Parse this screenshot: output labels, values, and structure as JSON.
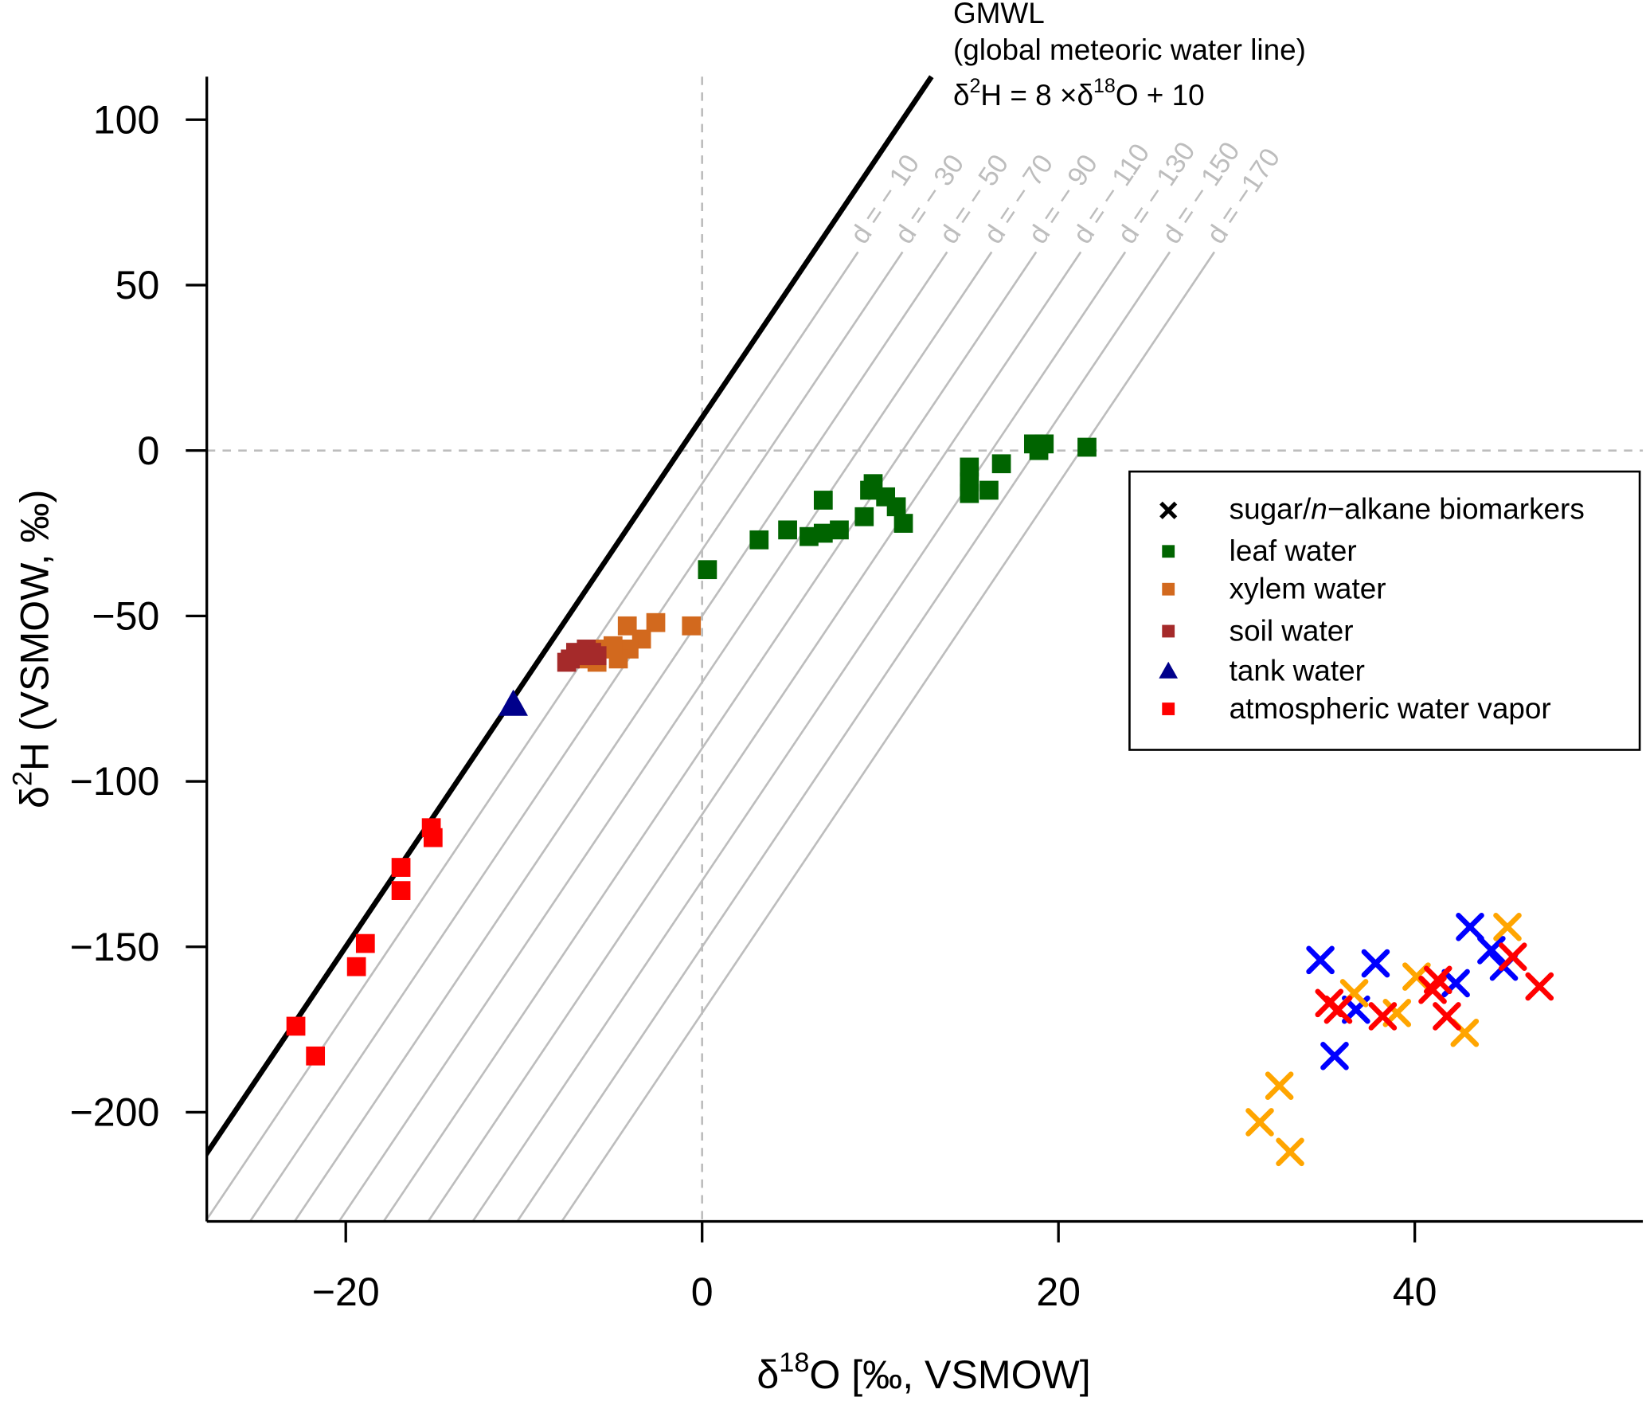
{
  "chart_data": {
    "type": "scatter",
    "xlabel": {
      "pre": "δ",
      "sup": "18",
      "post": "O [‰, VSMOW]"
    },
    "ylabel": {
      "pre": "δ",
      "sup": "2",
      "post": "H (VSMOW, ‰)"
    },
    "xlim": [
      -27.8,
      52.8
    ],
    "ylim": [
      -233,
      113
    ],
    "xticks": [
      -20,
      0,
      20,
      40
    ],
    "yticks": [
      100,
      50,
      0,
      -50,
      -100,
      -150,
      -200
    ],
    "xtick_labels": [
      "−20",
      "0",
      "20",
      "40"
    ],
    "ytick_labels": [
      "100",
      "50",
      "0",
      "−50",
      "−100",
      "−150",
      "−200"
    ],
    "gmwl": {
      "slope": 8,
      "intercept": 10,
      "line1": "GMWL",
      "line2": "(global meteoric water line)",
      "eq_a": "δ",
      "eq_b": "2",
      "eq_c": "H = 8 ×δ",
      "eq_d": "18",
      "eq_e": "O + 10"
    },
    "d_lines": [
      -10,
      -30,
      -50,
      -70,
      -90,
      -110,
      -130,
      -150,
      -170
    ],
    "d_labels": [
      "d = − 10",
      "d = − 30",
      "d = − 50",
      "d = − 70",
      "d = − 90",
      "d = − 110",
      "d = − 130",
      "d = − 150",
      "d = −170"
    ],
    "reference_lines": {
      "x": 0,
      "y": 0
    },
    "legend": {
      "placement": "right",
      "entries": [
        {
          "label_a": "sugar/",
          "label_i": "n",
          "label_b": "−alkane biomarkers",
          "symbol": "cross",
          "color": "#000000"
        },
        {
          "label": "leaf water",
          "symbol": "square",
          "color": "#006400"
        },
        {
          "label": "xylem water",
          "symbol": "square",
          "color": "#D2691E"
        },
        {
          "label": "soil water",
          "symbol": "square",
          "color": "#A52A2A"
        },
        {
          "label": "tank water",
          "symbol": "triangle",
          "color": "#00008B"
        },
        {
          "label": "atmospheric water vapor",
          "symbol": "square",
          "color": "#FF0000"
        }
      ]
    },
    "series": [
      {
        "name": "leaf water",
        "symbol": "square",
        "color": "#006400",
        "points": [
          [
            0.3,
            -36
          ],
          [
            3.2,
            -27
          ],
          [
            4.8,
            -24
          ],
          [
            6.0,
            -26
          ],
          [
            6.8,
            -25
          ],
          [
            7.7,
            -24
          ],
          [
            6.8,
            -15
          ],
          [
            9.1,
            -20
          ],
          [
            9.6,
            -10
          ],
          [
            9.4,
            -12
          ],
          [
            10.3,
            -14
          ],
          [
            10.9,
            -17
          ],
          [
            11.3,
            -22
          ],
          [
            15.0,
            -5
          ],
          [
            15.0,
            -9.5
          ],
          [
            15.0,
            -13
          ],
          [
            16.1,
            -12
          ],
          [
            16.8,
            -4
          ],
          [
            18.6,
            2
          ],
          [
            18.9,
            0
          ],
          [
            19.2,
            2
          ],
          [
            21.6,
            1
          ]
        ]
      },
      {
        "name": "xylem water",
        "symbol": "square",
        "color": "#D2691E",
        "points": [
          [
            -0.6,
            -53
          ],
          [
            -2.6,
            -52
          ],
          [
            -4.2,
            -53
          ],
          [
            -3.4,
            -57
          ],
          [
            -4.1,
            -60
          ],
          [
            -4.7,
            -63
          ],
          [
            -5.6,
            -60
          ],
          [
            -5.9,
            -64
          ],
          [
            -6.5,
            -63
          ],
          [
            -5.0,
            -59
          ]
        ]
      },
      {
        "name": "soil water",
        "symbol": "square",
        "color": "#A52A2A",
        "points": [
          [
            -7.4,
            -63
          ],
          [
            -6.8,
            -62
          ],
          [
            -6.2,
            -61
          ],
          [
            -6.5,
            -60
          ],
          [
            -7.1,
            -61
          ],
          [
            -5.9,
            -62
          ],
          [
            -7.6,
            -64
          ]
        ]
      },
      {
        "name": "tank water",
        "symbol": "triangle",
        "color": "#00008B",
        "points": [
          [
            -10.6,
            -77
          ]
        ]
      },
      {
        "name": "atmospheric water vapor",
        "symbol": "square",
        "color": "#FF0000",
        "points": [
          [
            -15.2,
            -114
          ],
          [
            -15.1,
            -117
          ],
          [
            -16.9,
            -126
          ],
          [
            -16.9,
            -133
          ],
          [
            -18.9,
            -149
          ],
          [
            -19.4,
            -156
          ],
          [
            -22.8,
            -174
          ],
          [
            -21.7,
            -183
          ]
        ]
      },
      {
        "name": "biomarkers (blue)",
        "symbol": "cross",
        "color": "#0000FF",
        "points": [
          [
            34.7,
            -154
          ],
          [
            37.8,
            -155
          ],
          [
            43.1,
            -144
          ],
          [
            44.3,
            -151
          ],
          [
            45.0,
            -156
          ],
          [
            42.3,
            -161
          ],
          [
            36.7,
            -169
          ],
          [
            35.5,
            -183
          ]
        ]
      },
      {
        "name": "biomarkers (orange)",
        "symbol": "cross",
        "color": "#FFA500",
        "points": [
          [
            45.2,
            -144
          ],
          [
            40.1,
            -159
          ],
          [
            36.6,
            -164
          ],
          [
            39.0,
            -170
          ],
          [
            42.8,
            -176
          ],
          [
            32.4,
            -192
          ],
          [
            31.3,
            -203
          ],
          [
            33.0,
            -212
          ]
        ]
      },
      {
        "name": "biomarkers (red)",
        "symbol": "cross",
        "color": "#FF0000",
        "points": [
          [
            45.5,
            -153
          ],
          [
            47.0,
            -162
          ],
          [
            41.3,
            -160
          ],
          [
            41.0,
            -163
          ],
          [
            41.8,
            -171
          ],
          [
            38.2,
            -171
          ],
          [
            35.2,
            -167
          ],
          [
            35.7,
            -169
          ]
        ]
      }
    ]
  }
}
